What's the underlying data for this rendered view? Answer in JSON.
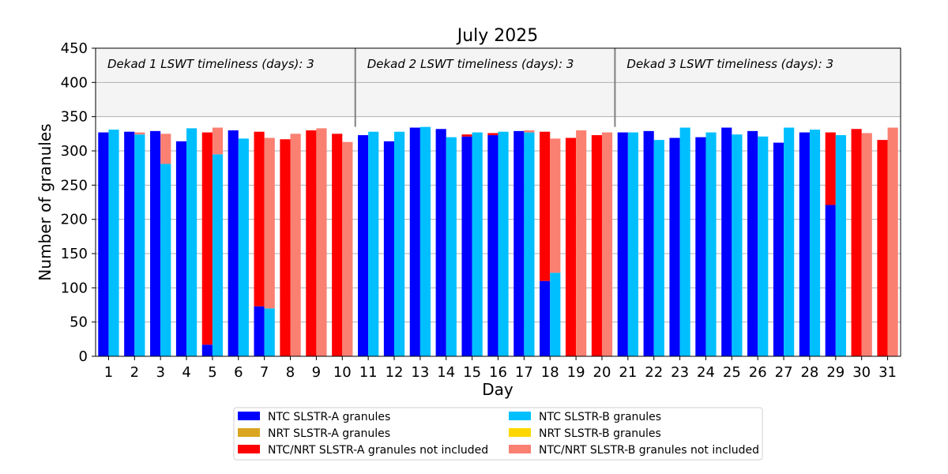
{
  "chart_data": {
    "type": "bar",
    "title": "July 2025",
    "xlabel": "Day",
    "ylabel": "Number of granules",
    "ylim": [
      0,
      450
    ],
    "yticks": [
      0,
      50,
      100,
      150,
      200,
      250,
      300,
      350,
      400,
      450
    ],
    "grid": "horizontal",
    "legend_placement": "below",
    "categories": [
      "1",
      "2",
      "3",
      "4",
      "5",
      "6",
      "7",
      "8",
      "9",
      "10",
      "11",
      "12",
      "13",
      "14",
      "15",
      "16",
      "17",
      "18",
      "19",
      "20",
      "21",
      "22",
      "23",
      "24",
      "25",
      "26",
      "27",
      "28",
      "29",
      "30",
      "31"
    ],
    "dekads": [
      {
        "label": "Dekad 1 LSWT timeliness (days): 3",
        "days": [
          1,
          10
        ]
      },
      {
        "label": "Dekad 2 LSWT timeliness (days): 3",
        "days": [
          11,
          20
        ]
      },
      {
        "label": "Dekad 3 LSWT timeliness (days): 3",
        "days": [
          21,
          31
        ]
      }
    ],
    "series": [
      {
        "name": "NTC SLSTR-A granules",
        "color": "#0000ff",
        "bar": "A",
        "values": [
          327,
          328,
          329,
          314,
          17,
          330,
          73,
          0,
          0,
          0,
          323,
          314,
          334,
          332,
          321,
          323,
          329,
          110,
          0,
          0,
          327,
          329,
          319,
          320,
          334,
          329,
          312,
          327,
          221,
          0,
          0
        ]
      },
      {
        "name": "NRT SLSTR-A granules",
        "color": "#daa520",
        "bar": "A",
        "values": [
          0,
          0,
          0,
          0,
          0,
          0,
          0,
          0,
          0,
          0,
          0,
          0,
          0,
          0,
          0,
          0,
          0,
          0,
          0,
          0,
          0,
          0,
          0,
          0,
          0,
          0,
          0,
          0,
          0,
          0,
          0
        ]
      },
      {
        "name": "NTC/NRT SLSTR-A granules not included",
        "color": "#ff0000",
        "bar": "A",
        "values": [
          0,
          0,
          0,
          0,
          310,
          0,
          255,
          317,
          330,
          325,
          0,
          0,
          0,
          0,
          3,
          3,
          0,
          218,
          319,
          323,
          0,
          0,
          0,
          0,
          0,
          0,
          0,
          0,
          106,
          332,
          316
        ]
      },
      {
        "name": "NTC SLSTR-B granules",
        "color": "#00bfff",
        "bar": "B",
        "values": [
          331,
          324,
          281,
          333,
          295,
          318,
          70,
          0,
          0,
          0,
          328,
          328,
          335,
          320,
          327,
          328,
          327,
          122,
          0,
          0,
          327,
          316,
          334,
          327,
          324,
          321,
          334,
          331,
          323,
          0,
          0
        ]
      },
      {
        "name": "NRT SLSTR-B granules",
        "color": "#ffd700",
        "bar": "B",
        "values": [
          0,
          0,
          0,
          0,
          0,
          0,
          0,
          0,
          0,
          0,
          0,
          0,
          0,
          0,
          0,
          0,
          0,
          0,
          0,
          0,
          0,
          0,
          0,
          0,
          0,
          0,
          0,
          0,
          0,
          0,
          0
        ]
      },
      {
        "name": "NTC/NRT SLSTR-B granules not included",
        "color": "#fa8072",
        "bar": "B",
        "values": [
          0,
          3,
          44,
          0,
          39,
          0,
          249,
          325,
          333,
          313,
          0,
          0,
          0,
          0,
          0,
          0,
          3,
          196,
          330,
          327,
          0,
          0,
          0,
          0,
          0,
          0,
          0,
          0,
          0,
          326,
          334
        ]
      }
    ]
  }
}
